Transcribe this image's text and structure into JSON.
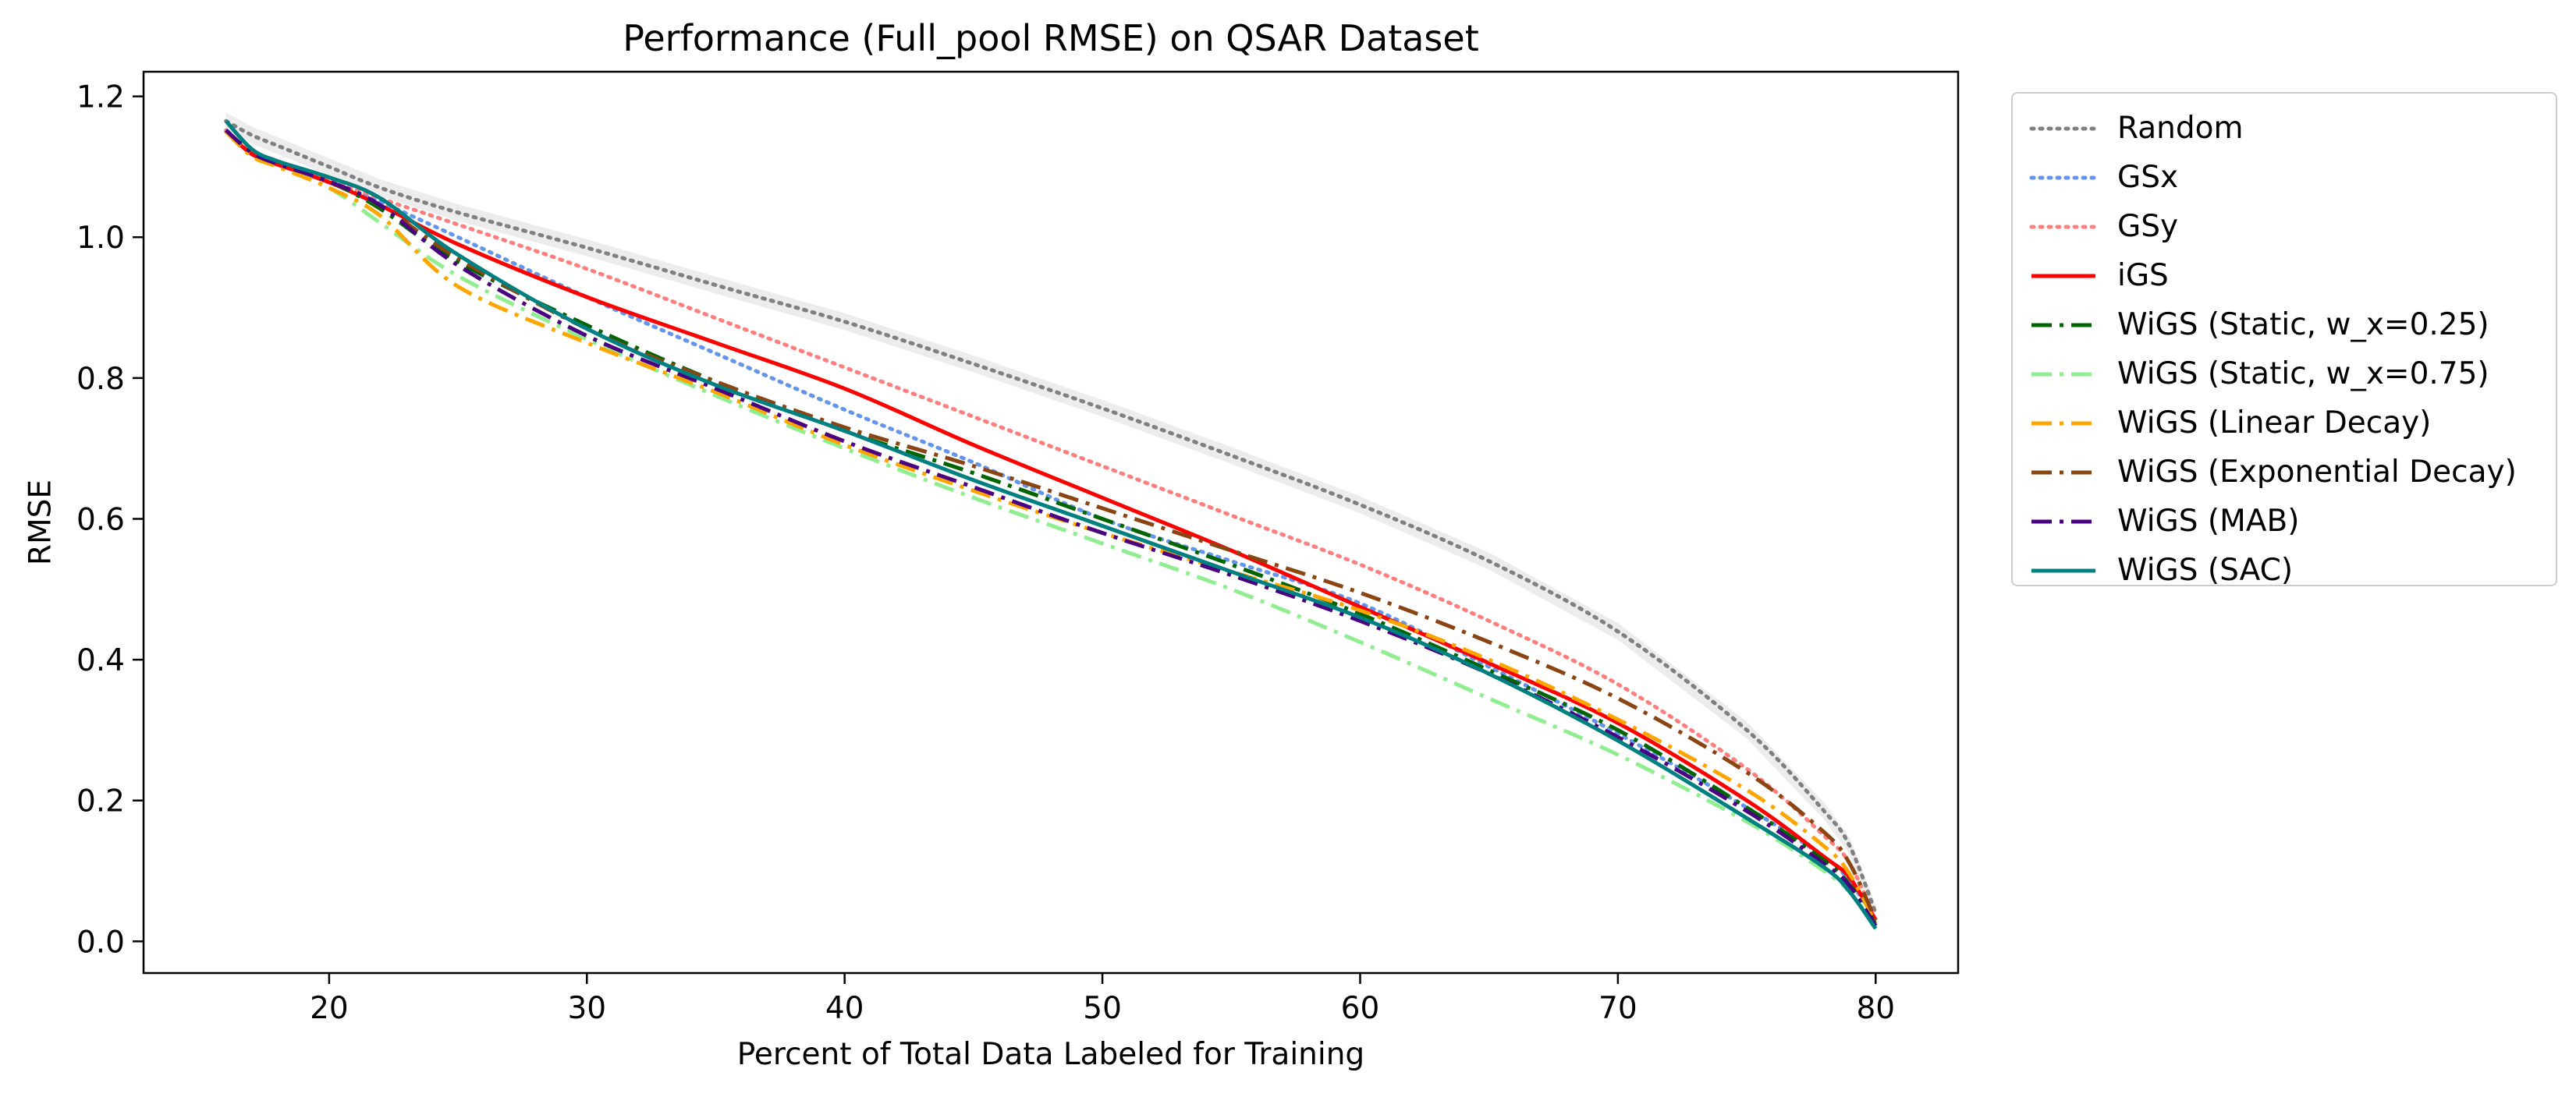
{
  "chart_data": {
    "type": "line",
    "title": "Performance (Full_pool RMSE) on QSAR Dataset",
    "xlabel": "Percent of Total Data Labeled for Training",
    "ylabel": "RMSE",
    "xlim": [
      12.8,
      83.2
    ],
    "ylim": [
      -0.045,
      1.235
    ],
    "xticks": [
      20,
      30,
      40,
      50,
      60,
      70,
      80
    ],
    "yticks": [
      0.0,
      0.2,
      0.4,
      0.6,
      0.8,
      1.0,
      1.2
    ],
    "ytick_labels": [
      "0.0",
      "0.2",
      "0.4",
      "0.6",
      "0.8",
      "1.0",
      "1.2"
    ],
    "legend_position": "outside-right",
    "x": [
      16,
      17,
      18,
      20,
      22,
      25,
      30,
      35,
      40,
      45,
      50,
      55,
      60,
      65,
      70,
      75,
      78,
      79,
      80
    ],
    "series": [
      {
        "name": "Random",
        "color": "#808080",
        "style": "dotted",
        "band": true,
        "values": [
          1.165,
          1.145,
          1.13,
          1.1,
          1.07,
          1.035,
          0.985,
          0.932,
          0.88,
          0.82,
          0.757,
          0.69,
          0.62,
          0.54,
          0.44,
          0.3,
          0.185,
          0.135,
          0.04
        ]
      },
      {
        "name": "GSx",
        "color": "#6495ED",
        "style": "dotted",
        "band": false,
        "values": [
          1.15,
          1.118,
          1.104,
          1.08,
          1.05,
          1.0,
          0.915,
          0.835,
          0.755,
          0.68,
          0.6,
          0.54,
          0.48,
          0.39,
          0.295,
          0.19,
          0.12,
          0.085,
          0.03
        ]
      },
      {
        "name": "GSy",
        "color": "#FF7F7F",
        "style": "dotted",
        "band": false,
        "values": [
          1.152,
          1.12,
          1.106,
          1.082,
          1.055,
          1.018,
          0.955,
          0.885,
          0.815,
          0.745,
          0.675,
          0.605,
          0.535,
          0.455,
          0.365,
          0.245,
          0.15,
          0.11,
          0.03
        ]
      },
      {
        "name": "iGS",
        "color": "#FF0000",
        "style": "solid",
        "band": false,
        "values": [
          1.15,
          1.118,
          1.103,
          1.078,
          1.045,
          0.99,
          0.915,
          0.85,
          0.785,
          0.705,
          0.63,
          0.555,
          0.475,
          0.395,
          0.31,
          0.2,
          0.12,
          0.09,
          0.03
        ]
      },
      {
        "name": "WiGS (Static, w_x=0.25)",
        "color": "#006400",
        "style": "dashdot",
        "band": false,
        "values": [
          1.152,
          1.12,
          1.104,
          1.079,
          1.04,
          0.965,
          0.875,
          0.795,
          0.725,
          0.665,
          0.6,
          0.535,
          0.465,
          0.385,
          0.3,
          0.19,
          0.115,
          0.08,
          0.025
        ]
      },
      {
        "name": "WiGS (Static, w_x=0.75)",
        "color": "#90EE90",
        "style": "dashdot",
        "band": false,
        "values": [
          1.15,
          1.115,
          1.1,
          1.07,
          1.02,
          0.945,
          0.855,
          0.775,
          0.7,
          0.63,
          0.565,
          0.5,
          0.425,
          0.345,
          0.265,
          0.17,
          0.1,
          0.07,
          0.02
        ]
      },
      {
        "name": "WiGS (Linear Decay)",
        "color": "#FFA500",
        "style": "dashdot",
        "band": false,
        "values": [
          1.15,
          1.115,
          1.1,
          1.07,
          1.03,
          0.93,
          0.85,
          0.78,
          0.705,
          0.64,
          0.58,
          0.525,
          0.47,
          0.4,
          0.315,
          0.215,
          0.135,
          0.095,
          0.025
        ]
      },
      {
        "name": "WiGS (Exponential Decay)",
        "color": "#8B4513",
        "style": "dashdot",
        "band": false,
        "values": [
          1.152,
          1.12,
          1.104,
          1.079,
          1.045,
          0.97,
          0.87,
          0.795,
          0.73,
          0.675,
          0.615,
          0.555,
          0.495,
          0.425,
          0.345,
          0.24,
          0.155,
          0.11,
          0.03
        ]
      },
      {
        "name": "WiGS (MAB)",
        "color": "#4B0082",
        "style": "dashdot",
        "band": false,
        "values": [
          1.152,
          1.12,
          1.104,
          1.079,
          1.045,
          0.96,
          0.86,
          0.785,
          0.71,
          0.645,
          0.58,
          0.52,
          0.455,
          0.38,
          0.29,
          0.185,
          0.11,
          0.078,
          0.022
        ]
      },
      {
        "name": "WiGS (SAC)",
        "color": "#008080",
        "style": "solid",
        "band": false,
        "values": [
          1.165,
          1.125,
          1.108,
          1.085,
          1.055,
          0.975,
          0.87,
          0.79,
          0.725,
          0.655,
          0.59,
          0.525,
          0.46,
          0.38,
          0.285,
          0.175,
          0.105,
          0.07,
          0.018
        ]
      }
    ]
  }
}
